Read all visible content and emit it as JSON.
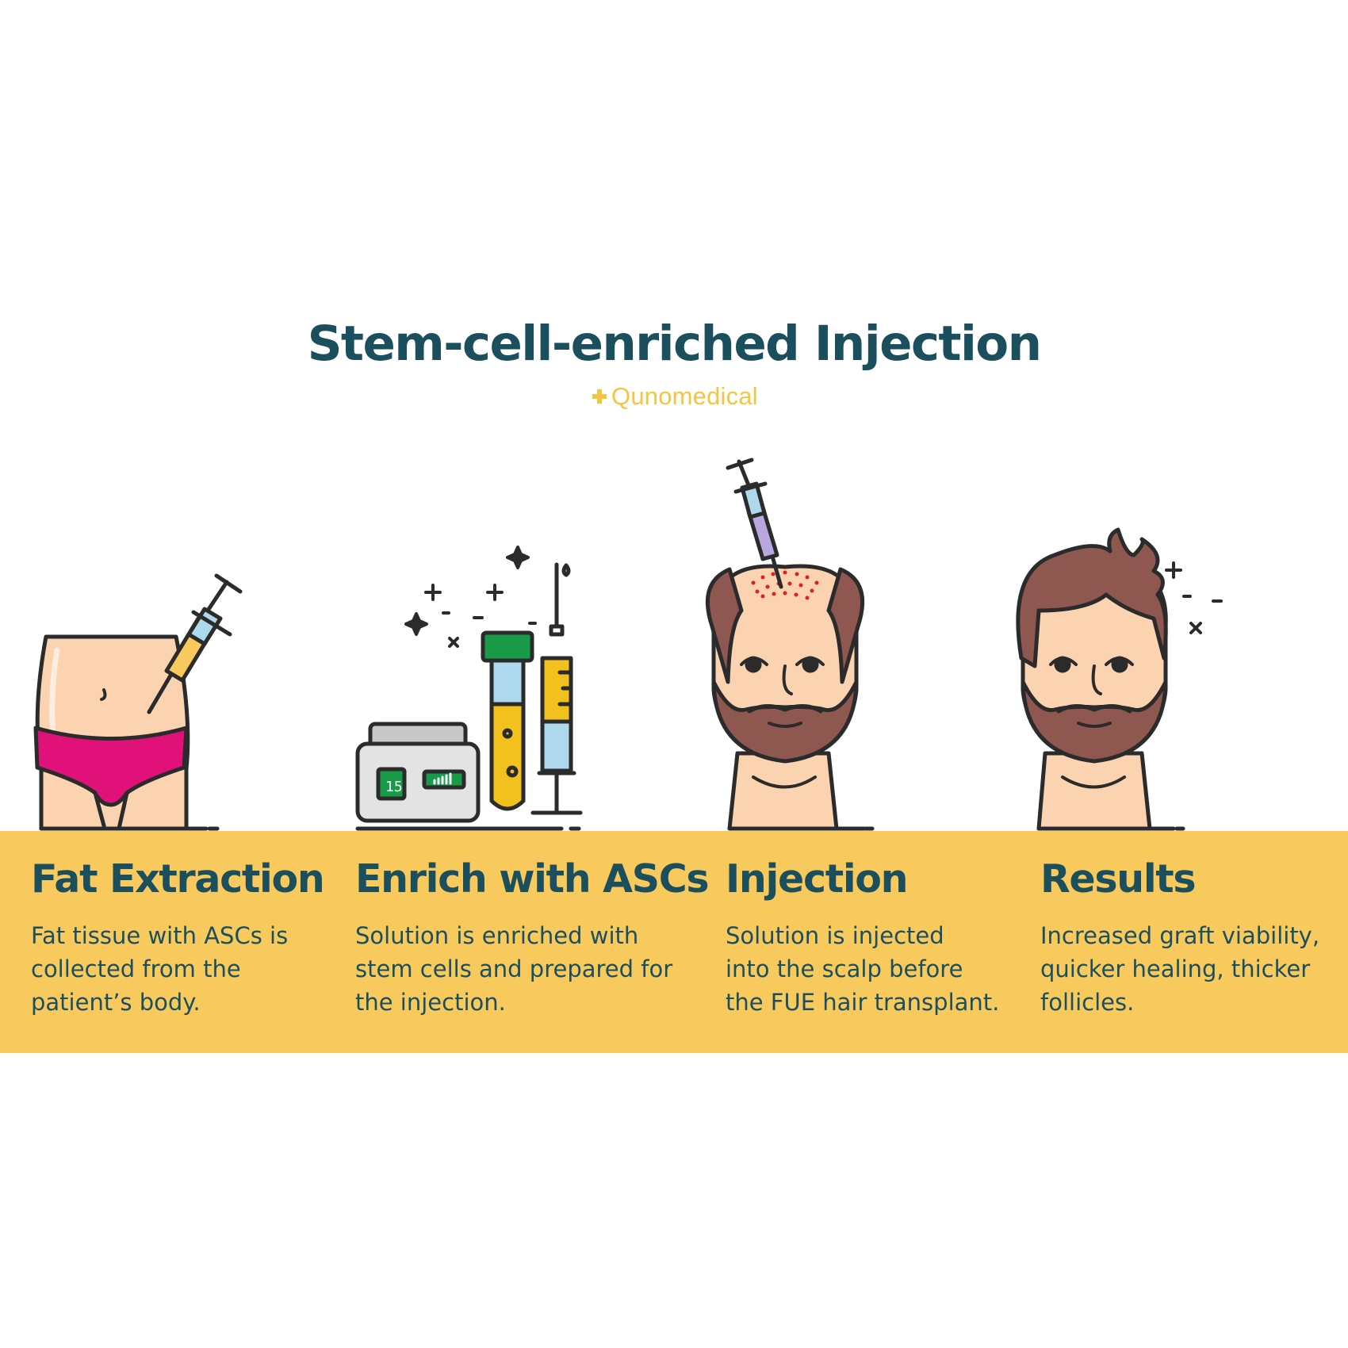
{
  "title": "Stem-cell-enriched Injection",
  "brand": {
    "name": "Qunomedical",
    "color": "#f5c542"
  },
  "colors": {
    "text": "#1c4f5e",
    "band": "#f8c95c",
    "outline": "#2b2b2b",
    "skin": "#fbd3b0",
    "hair": "#8e5750",
    "underwear": "#e0127a"
  },
  "device_readout": "15",
  "steps": [
    {
      "title": "Fat Extraction",
      "text": "Fat tissue with ASCs is\ncollected from the\npatient’s body."
    },
    {
      "title": "Enrich with ASCs",
      "text": "Solution is enriched with\nstem cells and prepared for\nthe injection."
    },
    {
      "title": "Injection",
      "text": "Solution is injected\ninto the scalp before\nthe FUE hair transplant."
    },
    {
      "title": "Results",
      "text": "Increased graft viability,\nquicker healing, thicker\nfollicles."
    }
  ]
}
